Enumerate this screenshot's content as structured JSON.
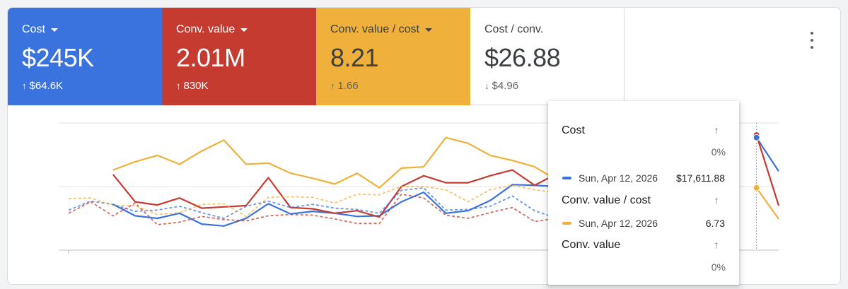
{
  "metrics": {
    "cost": {
      "label": "Cost",
      "value": "$245K",
      "arrow": "↑",
      "delta": "$64.6K"
    },
    "conv_value": {
      "label": "Conv. value",
      "value": "2.01M",
      "arrow": "↑",
      "delta": "830K"
    },
    "ratio": {
      "label": "Conv. value / cost",
      "value": "8.21",
      "arrow": "↑",
      "delta": "1.66"
    },
    "cost_per_conv": {
      "label": "Cost / conv.",
      "value": "$26.88",
      "arrow": "↓",
      "delta": "$4.96"
    }
  },
  "menu_icon": "more-vert-icon",
  "colors": {
    "cost": "#3a73de",
    "conv_value": "#c53b30",
    "ratio": "#efb03c",
    "grid": "#e0e0e0"
  },
  "tooltip": {
    "cost": {
      "title": "Cost",
      "arrow": "↑",
      "pct": "0%",
      "date": "Sun, Apr 12, 2026",
      "value": "$17,611.88"
    },
    "ratio": {
      "title": "Conv. value / cost",
      "arrow": "↑",
      "date": "Sun, Apr 12, 2026",
      "value": "6.73"
    },
    "conv_value": {
      "title": "Conv. value",
      "arrow": "↑",
      "pct": "0%"
    }
  },
  "chart_data": {
    "type": "line",
    "x": [
      "1",
      "2",
      "3",
      "4",
      "5",
      "6",
      "7",
      "8",
      "9",
      "10",
      "11",
      "12",
      "13",
      "14",
      "15",
      "16",
      "17",
      "18",
      "19",
      "20",
      "21",
      "22",
      "23",
      "24",
      "25",
      "26",
      "27",
      "28",
      "29",
      "30",
      "31",
      "32",
      "33"
    ],
    "series": [
      {
        "name": "Cost",
        "style": "solid",
        "values": [
          null,
          null,
          0.72,
          0.54,
          0.5,
          0.58,
          0.41,
          0.38,
          0.5,
          0.73,
          0.57,
          0.61,
          0.58,
          0.53,
          0.54,
          0.76,
          0.91,
          0.58,
          0.62,
          0.78,
          1.03,
          1.02,
          1.0,
          null,
          null,
          null,
          null,
          null,
          null,
          null,
          null,
          1.77,
          1.24
        ]
      },
      {
        "name": "Conv. value",
        "style": "solid",
        "values": [
          null,
          null,
          1.19,
          0.76,
          0.71,
          0.82,
          0.66,
          0.68,
          0.7,
          1.14,
          0.67,
          0.65,
          0.58,
          0.62,
          0.52,
          1.0,
          1.17,
          1.06,
          1.06,
          1.17,
          1.26,
          1.02,
          1.2,
          null,
          null,
          null,
          null,
          null,
          null,
          null,
          null,
          1.81,
          0.7
        ]
      },
      {
        "name": "Conv. value / cost",
        "style": "solid",
        "values": [
          null,
          null,
          1.26,
          1.39,
          1.49,
          1.35,
          1.56,
          1.73,
          1.35,
          1.37,
          1.21,
          1.13,
          1.04,
          1.21,
          0.98,
          1.29,
          1.31,
          1.77,
          1.68,
          1.49,
          1.41,
          1.31,
          1.1,
          null,
          null,
          null,
          null,
          null,
          null,
          null,
          null,
          0.98,
          0.49
        ]
      },
      {
        "name": "Cost (previous)",
        "style": "dashed",
        "values": [
          0.63,
          0.77,
          0.72,
          0.61,
          0.63,
          0.69,
          0.59,
          0.5,
          0.69,
          0.77,
          0.67,
          0.72,
          0.66,
          0.64,
          0.58,
          0.94,
          0.98,
          0.63,
          0.64,
          0.69,
          0.85,
          0.62,
          0.5,
          null,
          null,
          null,
          null,
          null,
          null,
          null,
          null,
          null,
          null
        ]
      },
      {
        "name": "Conv. value (previous)",
        "style": "dashed",
        "values": [
          0.58,
          0.76,
          0.54,
          0.74,
          0.4,
          0.44,
          0.53,
          0.48,
          0.46,
          0.54,
          0.56,
          0.55,
          0.49,
          0.42,
          0.42,
          0.88,
          0.82,
          0.55,
          0.5,
          0.59,
          0.67,
          0.45,
          0.5,
          null,
          null,
          null,
          null,
          null,
          null,
          null,
          null,
          null,
          null
        ]
      },
      {
        "name": "Conv. value / cost (previous)",
        "style": "dashed",
        "values": [
          0.81,
          0.82,
          0.7,
          0.7,
          0.56,
          0.59,
          0.72,
          0.73,
          0.53,
          0.83,
          0.84,
          0.83,
          0.74,
          0.88,
          0.87,
          1.0,
          1.0,
          0.95,
          0.76,
          0.95,
          1.02,
          0.95,
          0.9,
          null,
          null,
          null,
          null,
          null,
          null,
          null,
          null,
          null,
          null
        ]
      }
    ],
    "highlight_index": 31,
    "grid": true
  }
}
